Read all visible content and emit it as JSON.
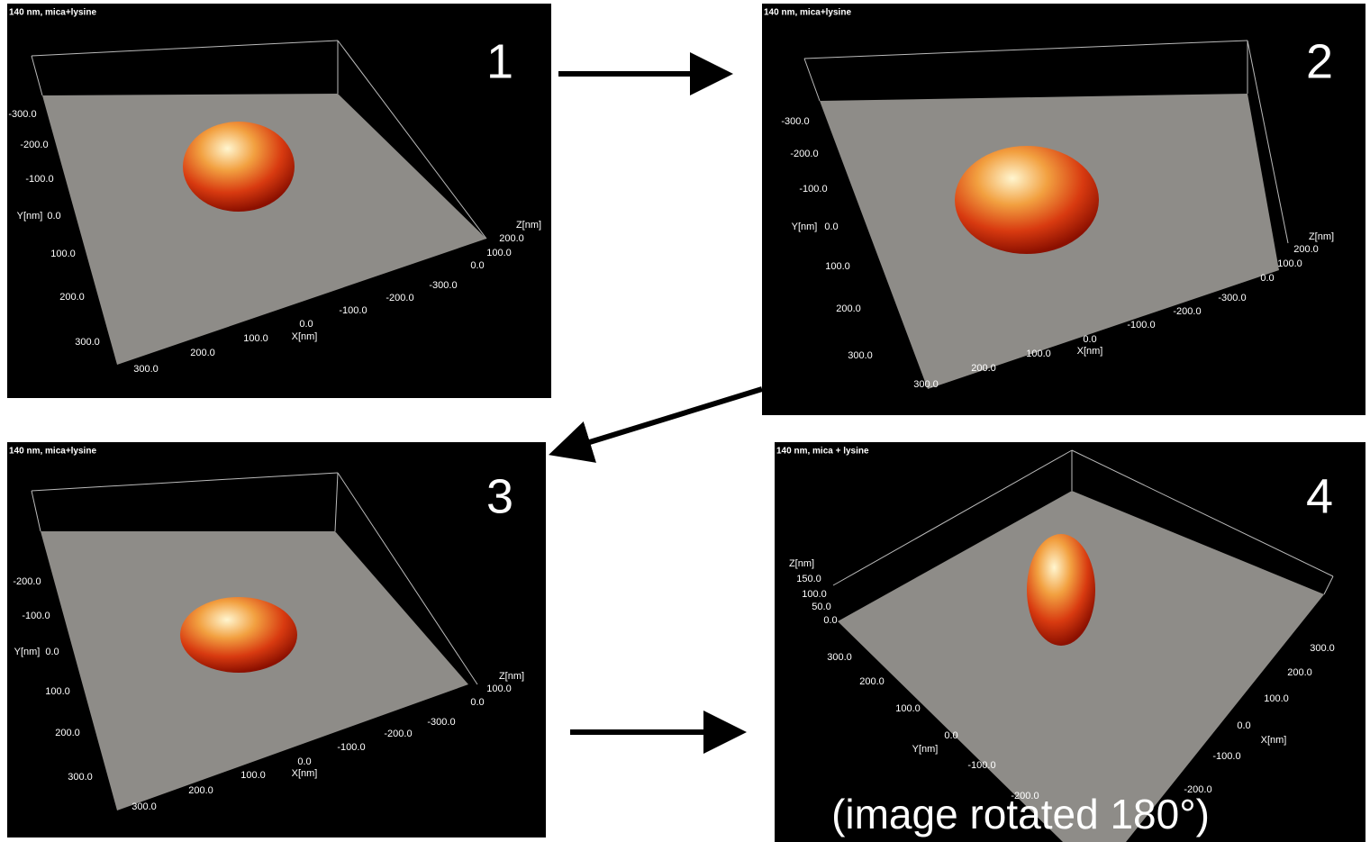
{
  "panels": [
    {
      "title": "140 nm, mica+lysine",
      "number": "1",
      "y_axis_label": "Y[nm]",
      "x_axis_label": "X[nm]",
      "z_axis_label": "Z[nm]",
      "y_ticks": [
        "-300.0",
        "-200.0",
        "-100.0",
        "0.0",
        "100.0",
        "200.0",
        "300.0"
      ],
      "x_ticks": [
        "300.0",
        "200.0",
        "100.0",
        "0.0",
        "-100.0",
        "-200.0",
        "-300.0"
      ],
      "z_ticks": [
        "200.0",
        "100.0",
        "0.0"
      ]
    },
    {
      "title": "140 nm, mica+lysine",
      "number": "2",
      "y_axis_label": "Y[nm]",
      "x_axis_label": "X[nm]",
      "z_axis_label": "Z[nm]",
      "y_ticks": [
        "-300.0",
        "-200.0",
        "-100.0",
        "0.0",
        "100.0",
        "200.0",
        "300.0"
      ],
      "x_ticks": [
        "300.0",
        "200.0",
        "100.0",
        "0.0",
        "-100.0",
        "-200.0",
        "-300.0"
      ],
      "z_ticks": [
        "200.0",
        "100.0",
        "0.0"
      ]
    },
    {
      "title": "140 nm, mica+lysine",
      "number": "3",
      "y_axis_label": "Y[nm]",
      "x_axis_label": "X[nm]",
      "z_axis_label": "Z[nm]",
      "y_ticks": [
        "-200.0",
        "-100.0",
        "0.0",
        "100.0",
        "200.0",
        "300.0"
      ],
      "x_ticks": [
        "300.0",
        "200.0",
        "100.0",
        "0.0",
        "-100.0",
        "-200.0",
        "-300.0"
      ],
      "z_ticks": [
        "100.0",
        "0.0"
      ]
    },
    {
      "title": "140 nm, mica + lysine",
      "number": "4",
      "y_axis_label": "Y[nm]",
      "x_axis_label": "X[nm]",
      "z_axis_label": "Z[nm]",
      "z_ticks": [
        "150.0",
        "100.0",
        "50.0",
        "0.0"
      ],
      "y_ticks": [
        "300.0",
        "200.0",
        "100.0",
        "0.0",
        "-100.0",
        "-200.0"
      ],
      "x_ticks": [
        "300.0",
        "200.0",
        "100.0",
        "0.0",
        "-100.0",
        "-200.0"
      ]
    }
  ],
  "caption": "(image rotated 180°)"
}
